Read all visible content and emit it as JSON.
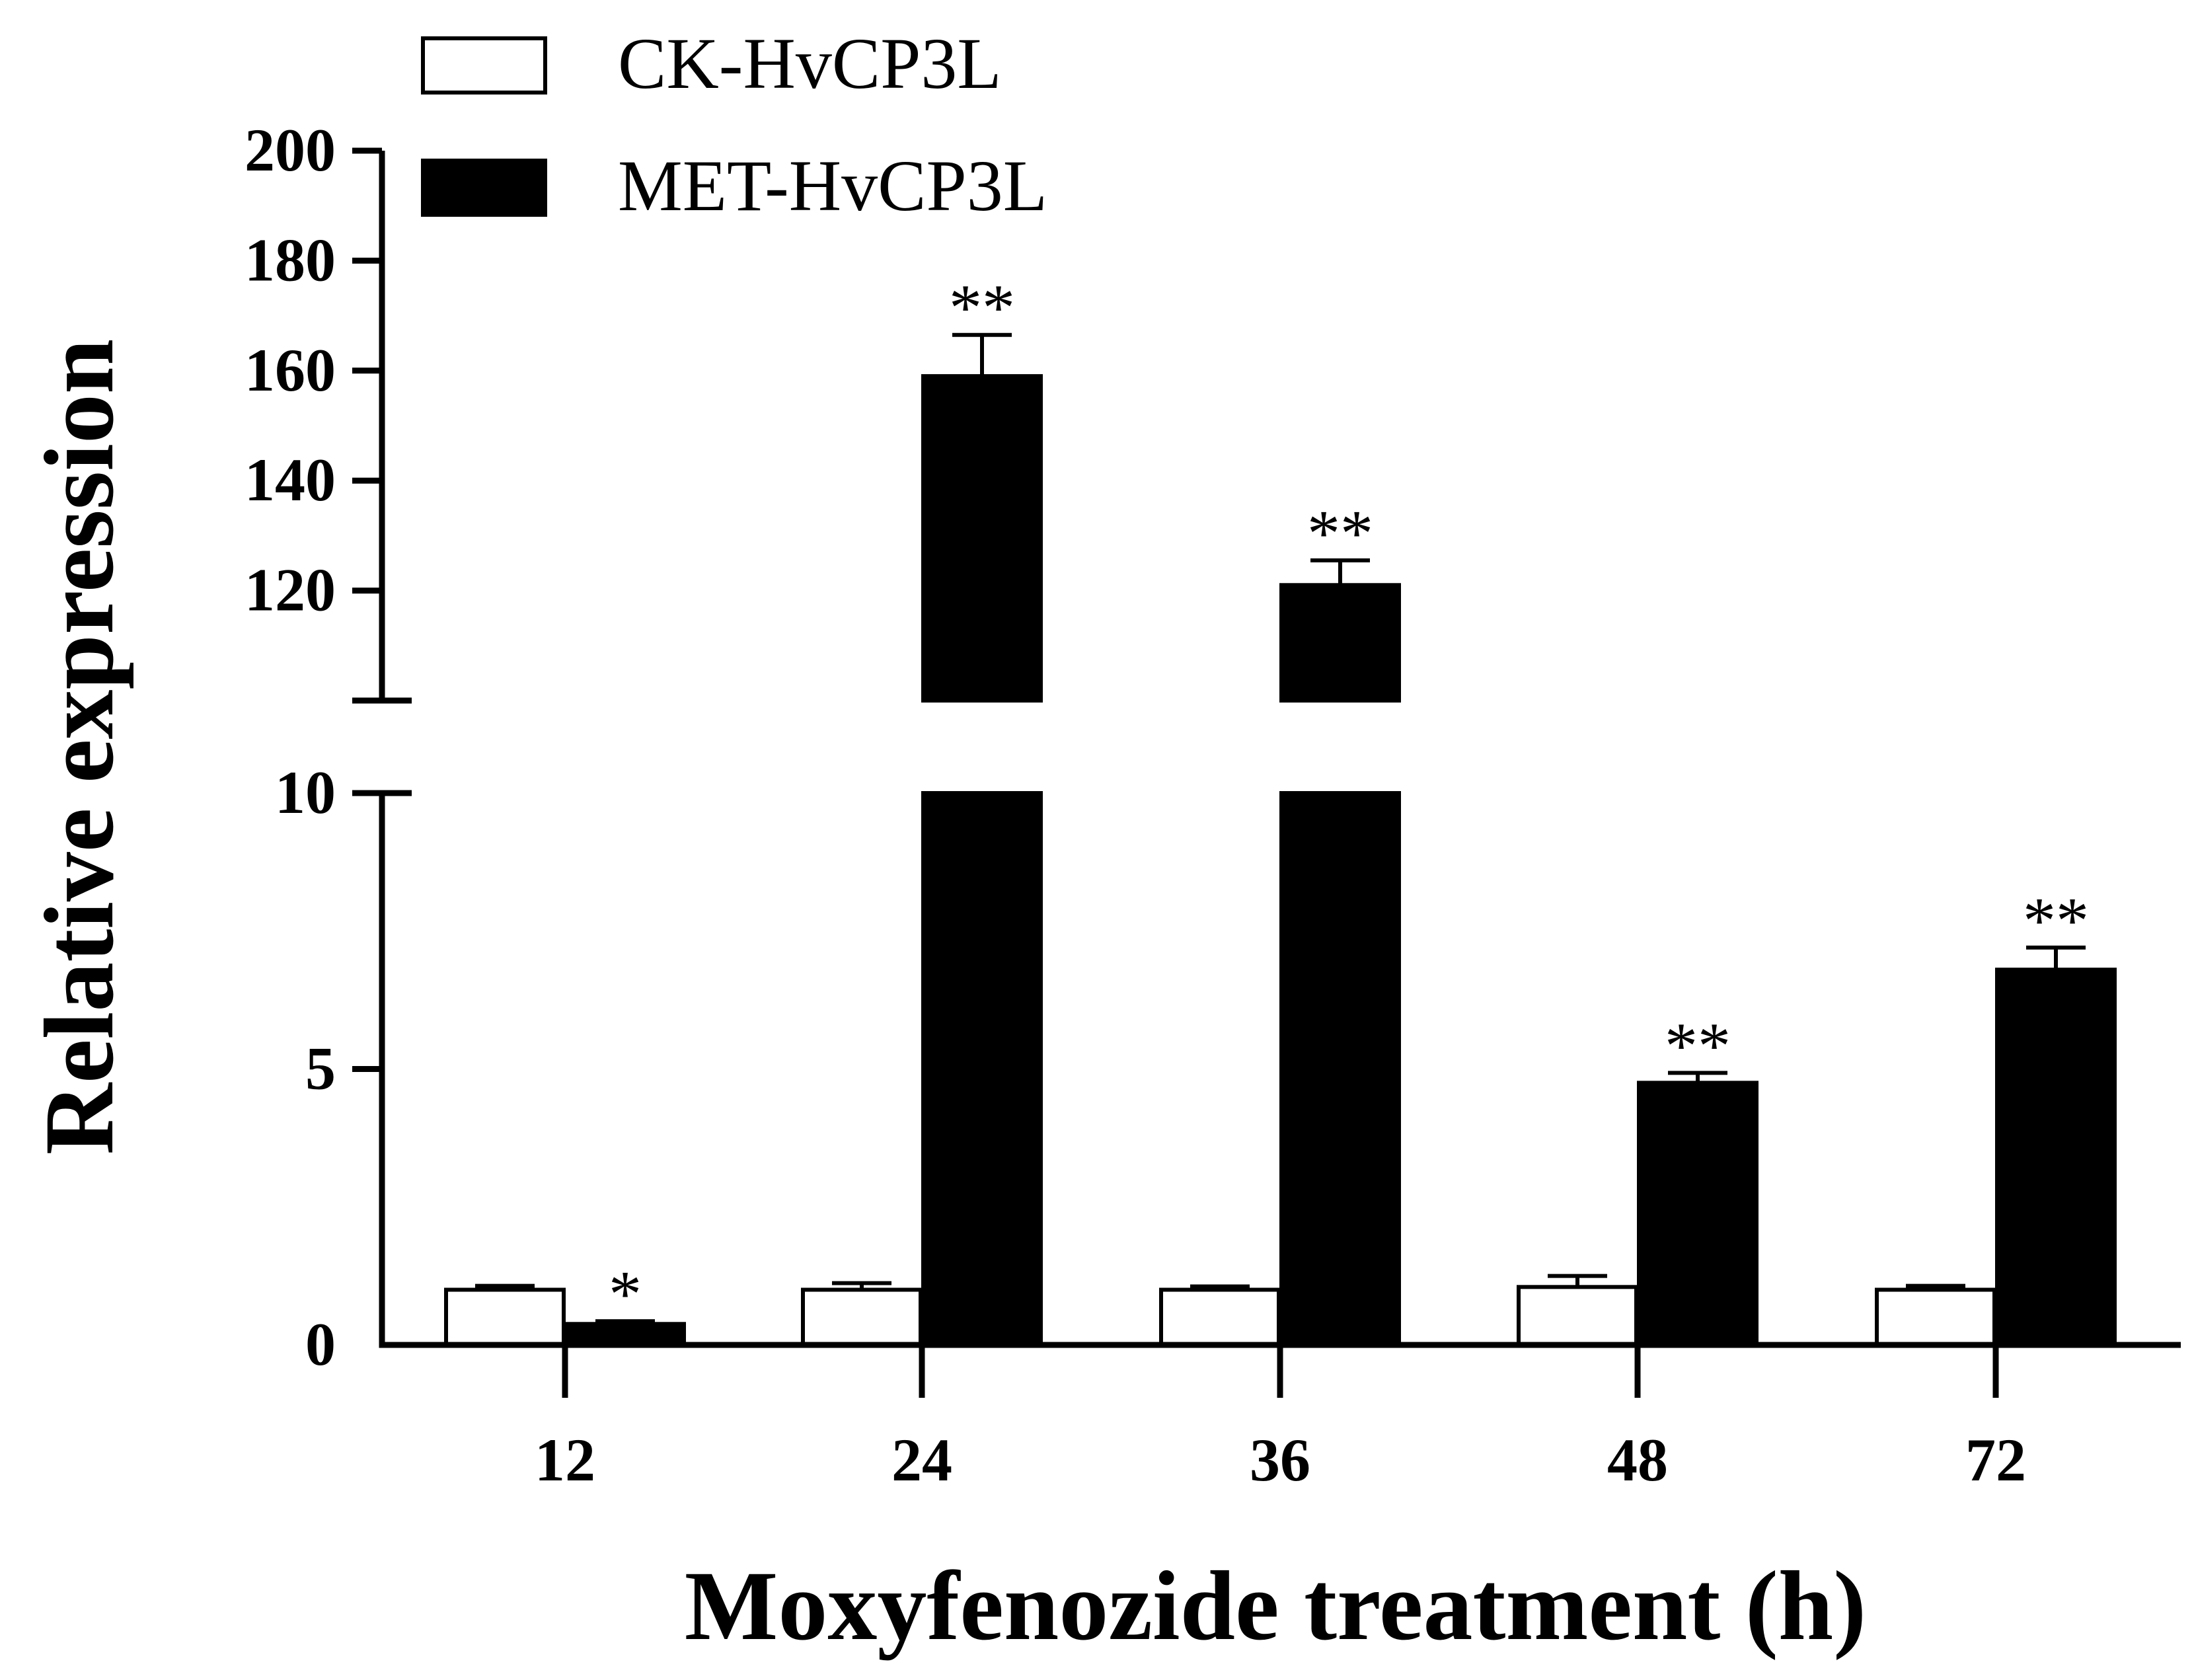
{
  "chart_data": {
    "type": "bar",
    "xlabel": "Moxyfenozide treatment (h)",
    "ylabel": "Relative expression",
    "categories": [
      "12",
      "24",
      "36",
      "48",
      "72"
    ],
    "y_axis_break": {
      "lower_range": [
        0,
        10
      ],
      "upper_range": [
        100,
        200
      ],
      "lower_ticks": [
        "0",
        "5",
        "10"
      ],
      "upper_ticks": [
        "120",
        "140",
        "160",
        "180",
        "200"
      ]
    },
    "series": [
      {
        "name": "CK-HvCP3L",
        "color": "#ffffff",
        "values": [
          1.0,
          1.0,
          1.0,
          1.05,
          1.0
        ],
        "errors": [
          0.07,
          0.12,
          0.06,
          0.2,
          0.07
        ],
        "significance": [
          "",
          "",
          "",
          "",
          ""
        ]
      },
      {
        "name": "MET-HvCP3L",
        "color": "#000000",
        "values": [
          0.38,
          159,
          121,
          4.75,
          6.8
        ],
        "errors": [
          0.05,
          7.5,
          4.5,
          0.18,
          0.4
        ],
        "significance": [
          "*",
          "**",
          "**",
          "**",
          "**"
        ]
      }
    ]
  }
}
